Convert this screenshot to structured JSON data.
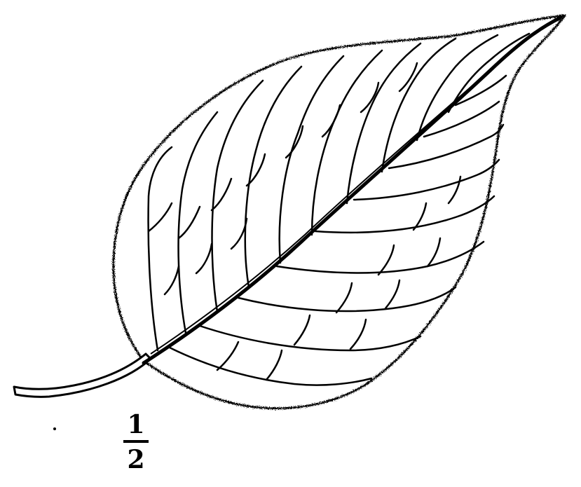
{
  "illustration": {
    "subject": "leaf-icon",
    "ink_color": "#000000",
    "background_color": "#ffffff"
  },
  "scale_label": {
    "numerator": "1",
    "denominator": "2"
  }
}
